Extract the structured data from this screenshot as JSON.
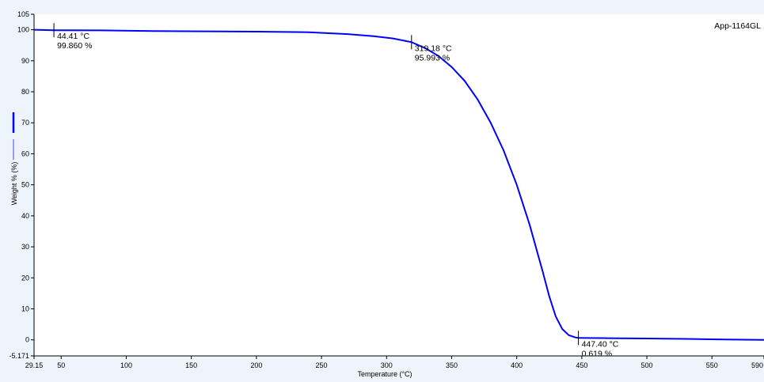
{
  "chart_data": {
    "type": "line",
    "sample_name": "App-1164GL",
    "xlabel": "Temperature (°C)",
    "ylabel": "Weight % (%)",
    "xlim": [
      29.15,
      590
    ],
    "ylim": [
      -5.171,
      105
    ],
    "x_ticks": [
      "29.15",
      "50",
      "100",
      "150",
      "200",
      "250",
      "300",
      "350",
      "400",
      "450",
      "500",
      "550",
      "590"
    ],
    "y_ticks": [
      "-5.171",
      "0",
      "10",
      "20",
      "30",
      "40",
      "50",
      "60",
      "70",
      "80",
      "90",
      "100",
      "105"
    ],
    "grid": false,
    "series": [
      {
        "color": "#0000ff",
        "x": [
          29.15,
          44.41,
          80,
          120,
          160,
          200,
          240,
          270,
          290,
          305,
          319.18,
          330,
          340,
          350,
          360,
          370,
          380,
          390,
          400,
          410,
          420,
          425,
          430,
          435,
          440,
          445,
          447.4,
          455,
          470,
          500,
          530,
          560,
          590
        ],
        "y": [
          100.0,
          99.86,
          99.8,
          99.6,
          99.5,
          99.4,
          99.2,
          98.6,
          97.9,
          97.2,
          95.993,
          94.0,
          91.5,
          88.0,
          83.5,
          77.5,
          70.0,
          61.0,
          50.0,
          37.0,
          22.0,
          14.0,
          7.5,
          3.5,
          1.5,
          0.8,
          0.619,
          0.6,
          0.55,
          0.45,
          0.3,
          0.1,
          0.0
        ]
      }
    ],
    "annotations": [
      {
        "x": 44.41,
        "y": 99.86,
        "temp_label": "44.41 °C",
        "weight_label": "99.860 %"
      },
      {
        "x": 319.18,
        "y": 95.993,
        "temp_label": "319.18 °C",
        "weight_label": "95.993 %"
      },
      {
        "x": 447.4,
        "y": 0.619,
        "temp_label": "447.40 °C",
        "weight_label": "0.619 %"
      }
    ],
    "legend": {
      "position": "left",
      "entries": [
        {
          "color": "#0000ff",
          "style": "thick"
        },
        {
          "color": "#4444ff",
          "style": "thin"
        }
      ]
    }
  }
}
